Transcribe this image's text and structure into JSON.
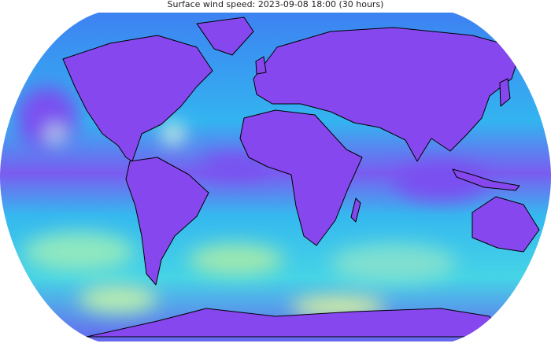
{
  "title": "Surface wind speed: 2023-09-08 18:00 (30 hours)"
}
